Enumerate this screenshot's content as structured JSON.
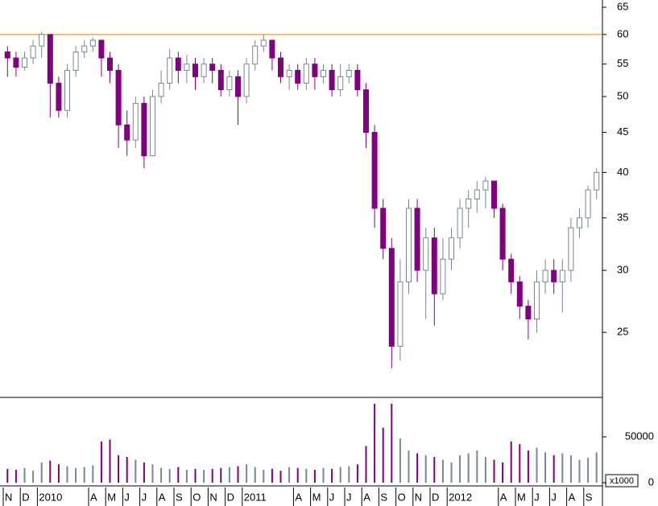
{
  "chart_data": {
    "type": "candlestick",
    "categories": [
      "N",
      null,
      "D",
      null,
      "2010",
      null,
      null,
      null,
      null,
      null,
      "A",
      null,
      "M",
      null,
      "J",
      null,
      "J",
      null,
      "A",
      null,
      "S",
      null,
      "O",
      null,
      "N",
      null,
      "D",
      null,
      "2011",
      null,
      null,
      null,
      null,
      null,
      "A",
      null,
      "M",
      null,
      "J",
      null,
      "J",
      null,
      "A",
      null,
      "S",
      null,
      "O",
      null,
      "N",
      null,
      "D",
      null,
      "2012",
      null,
      null,
      null,
      null,
      null,
      "A",
      null,
      "M",
      null,
      "J",
      null,
      "J",
      null,
      "A",
      null,
      "S",
      null
    ],
    "open": [
      57,
      56,
      54.5,
      56,
      58,
      60,
      52,
      48,
      54,
      57,
      58,
      59,
      56,
      54,
      46,
      44,
      49,
      42,
      50,
      52,
      56,
      54,
      55,
      53,
      55,
      54,
      51,
      53,
      50,
      55,
      58,
      59,
      56,
      53,
      54,
      52,
      55,
      53,
      54,
      51,
      53,
      54,
      51,
      45,
      36,
      32,
      24,
      29,
      36,
      30,
      33,
      28,
      31,
      33,
      36,
      37,
      38,
      39,
      36,
      31,
      29,
      27,
      26,
      29,
      30,
      29,
      30,
      34,
      35,
      38
    ],
    "high": [
      58,
      57,
      57,
      59,
      60.5,
      60,
      53,
      55,
      58,
      59,
      59.5,
      59,
      57,
      55,
      48,
      50,
      50,
      51,
      54,
      57.5,
      57,
      56.5,
      56,
      56,
      56,
      55,
      54,
      54,
      56,
      59,
      60,
      59,
      57,
      55,
      55,
      56,
      56,
      55,
      55,
      55,
      55,
      55,
      52,
      46,
      37,
      33,
      31,
      37,
      37,
      34,
      34,
      33,
      34,
      37,
      38,
      39,
      39.5,
      39,
      36.5,
      31.5,
      29.5,
      27.5,
      30,
      31,
      31,
      31,
      35,
      36,
      38.5,
      40.5
    ],
    "low": [
      53,
      53,
      54,
      55,
      56,
      47,
      47,
      47,
      53,
      56,
      57,
      53,
      52,
      43,
      42,
      43,
      40.5,
      42,
      49,
      51,
      52,
      52,
      51,
      52,
      52,
      50,
      50,
      46,
      49,
      54,
      57,
      54,
      52,
      51,
      51,
      51,
      51,
      52,
      50,
      50,
      52,
      50,
      43,
      34,
      31,
      22.5,
      23,
      28,
      29,
      26,
      25.5,
      27.5,
      30,
      32,
      34,
      35.5,
      36,
      35,
      30,
      28,
      26,
      24.5,
      25,
      28,
      28,
      26.5,
      29,
      33,
      34,
      37
    ],
    "close": [
      56,
      54.5,
      56,
      58,
      60,
      52,
      48,
      54,
      57,
      58,
      59,
      56,
      54,
      46,
      44,
      49,
      42,
      50,
      52,
      56,
      54,
      55,
      53,
      55,
      54,
      51,
      53,
      50,
      55,
      58,
      59,
      56,
      53,
      54,
      52,
      55,
      53,
      54,
      51,
      53,
      54,
      51,
      45,
      36,
      32,
      24,
      29,
      36,
      30,
      33,
      28,
      31,
      33,
      36,
      37,
      38,
      39,
      36,
      31,
      29,
      27,
      26,
      29,
      30,
      29,
      30,
      34,
      35,
      38,
      40
    ],
    "volume": [
      15000,
      14000,
      16000,
      13000,
      22000,
      24000,
      20000,
      18000,
      16000,
      17000,
      19000,
      45000,
      47000,
      30000,
      28000,
      25000,
      22000,
      20000,
      16000,
      15000,
      17000,
      14000,
      15000,
      14000,
      15000,
      16000,
      17000,
      18000,
      20000,
      17000,
      14000,
      15000,
      13000,
      17000,
      16000,
      15000,
      14000,
      16000,
      15000,
      17000,
      18000,
      20000,
      40000,
      86000,
      60000,
      86000,
      48000,
      35000,
      32000,
      30000,
      28000,
      25000,
      22000,
      30000,
      32000,
      35000,
      28000,
      25000,
      22000,
      45000,
      42000,
      35000,
      38000,
      33000,
      30000,
      32000,
      30000,
      25000,
      27000,
      33000
    ],
    "ylim": [
      20.7,
      66.4
    ],
    "yticks": [
      25,
      30,
      35,
      40,
      45,
      50,
      55,
      60,
      65
    ],
    "log_scale": true,
    "hline": 60,
    "hline_color": "#f08000",
    "volume_ylim": [
      0,
      92100
    ],
    "volume_yticks": [
      0,
      50000
    ],
    "volume_unit_label": "x1000",
    "up_color": "#ffffff",
    "up_edge_color": "#7a8794",
    "down_color": "#800080"
  }
}
